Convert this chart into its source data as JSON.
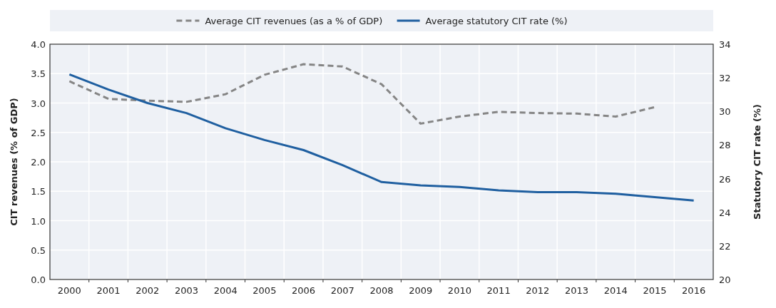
{
  "chart_data": {
    "type": "line",
    "categories": [
      "2000",
      "2001",
      "2002",
      "2003",
      "2004",
      "2005",
      "2006",
      "2007",
      "2008",
      "2009",
      "2010",
      "2011",
      "2012",
      "2013",
      "2014",
      "2015",
      "2016"
    ],
    "series": [
      {
        "name": "Average CIT revenues (as a % of GDP)",
        "color": "#858585",
        "line_style": "dashed",
        "values": [
          3.37,
          3.07,
          3.04,
          3.02,
          3.15,
          3.48,
          3.66,
          3.62,
          3.32,
          2.65,
          2.77,
          2.85,
          2.83,
          2.82,
          2.77,
          2.93,
          null
        ]
      },
      {
        "name": "Average statutory CIT rate (%)",
        "color": "#1f5fa0",
        "line_style": "solid",
        "axis": "y2",
        "values": [
          32.2,
          31.3,
          30.5,
          29.9,
          29.0,
          28.3,
          27.7,
          26.8,
          25.8,
          25.6,
          25.5,
          25.3,
          25.2,
          25.2,
          25.1,
          24.9,
          24.7
        ]
      }
    ],
    "ylabel": "CIT revenues (% of GDP)",
    "y2label": "Statutory CIT rate (%)",
    "ylim": [
      0,
      4
    ],
    "yticks": [
      {
        "value": 0,
        "label": "0.0"
      },
      {
        "value": 0.5,
        "label": "0.5"
      },
      {
        "value": 1,
        "label": "1.0"
      },
      {
        "value": 1.5,
        "label": "1.5"
      },
      {
        "value": 2,
        "label": "2.0"
      },
      {
        "value": 2.5,
        "label": "2.5"
      },
      {
        "value": 3,
        "label": "3.0"
      },
      {
        "value": 3.5,
        "label": "3.5"
      },
      {
        "value": 4,
        "label": "4.0"
      }
    ],
    "y2lim": [
      20,
      34
    ],
    "y2ticks": [
      20,
      22,
      24,
      26,
      28,
      30,
      32,
      34
    ],
    "grid": true,
    "legend": "top",
    "marker": "none"
  }
}
